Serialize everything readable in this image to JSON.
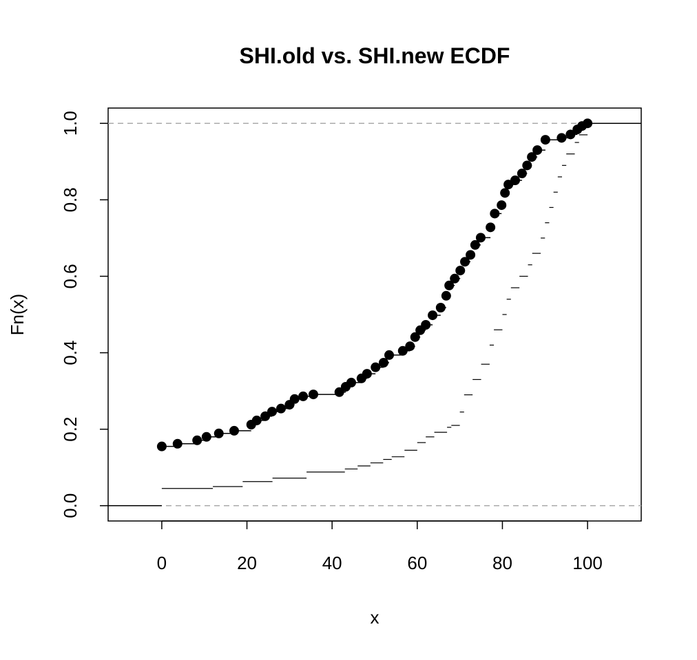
{
  "chart_data": {
    "type": "ecdf",
    "title": "SHI.old vs. SHI.new ECDF",
    "x_label": "x",
    "y_label": "Fn(x)",
    "xlim": [
      -12.6,
      112.6
    ],
    "ylim": [
      -0.04,
      1.04
    ],
    "xticks": [
      0,
      20,
      40,
      60,
      80,
      100
    ],
    "yticks": [
      {
        "value": 0,
        "label": "0.0"
      },
      {
        "value": 0.2,
        "label": "0.2"
      },
      {
        "value": 0.4,
        "label": "0.4"
      },
      {
        "value": 0.6,
        "label": "0.6"
      },
      {
        "value": 0.8,
        "label": "0.8"
      },
      {
        "value": 1,
        "label": "1.0"
      }
    ],
    "hlines": [
      0,
      1
    ],
    "series": [
      {
        "color": "#000000",
        "points": true,
        "x": [
          0,
          3.7,
          8.3,
          10.5,
          13.4,
          17,
          21,
          22.3,
          24.3,
          25.9,
          28,
          30,
          31.2,
          33.2,
          35.6,
          41.7,
          43.2,
          44.5,
          46.9,
          48.2,
          50.2,
          52.1,
          53.4,
          56.6,
          58.3,
          59.5,
          60.7,
          62,
          63.6,
          65.5,
          66.8,
          67.5,
          68.8,
          70.1,
          71.2,
          72.5,
          73.6,
          74.9,
          77.2,
          78.2,
          79.8,
          80.6,
          81.4,
          83,
          84.6,
          85.8,
          86.9,
          88.2,
          90.1,
          93.9,
          96,
          97.6,
          98.7,
          100
        ],
        "values": [
          0.155,
          0.162,
          0.171,
          0.18,
          0.189,
          0.196,
          0.212,
          0.223,
          0.234,
          0.246,
          0.254,
          0.264,
          0.279,
          0.286,
          0.291,
          0.297,
          0.311,
          0.322,
          0.333,
          0.345,
          0.362,
          0.374,
          0.394,
          0.405,
          0.417,
          0.441,
          0.459,
          0.473,
          0.498,
          0.518,
          0.549,
          0.576,
          0.594,
          0.615,
          0.638,
          0.656,
          0.682,
          0.701,
          0.728,
          0.764,
          0.786,
          0.818,
          0.84,
          0.851,
          0.869,
          0.89,
          0.912,
          0.93,
          0.957,
          0.962,
          0.971,
          0.984,
          0.993,
          1
        ]
      },
      {
        "color": "#000000",
        "points": false,
        "x": [
          0,
          12,
          19,
          26,
          34,
          43,
          46,
          49,
          52,
          54,
          57,
          60,
          62,
          64,
          67,
          68,
          70,
          71,
          73,
          75,
          77,
          78,
          80,
          81,
          82,
          84,
          86,
          87,
          89,
          90,
          91,
          92,
          93,
          94,
          95,
          97,
          98,
          100
        ],
        "values": [
          0.045,
          0.05,
          0.063,
          0.072,
          0.088,
          0.096,
          0.104,
          0.112,
          0.121,
          0.128,
          0.145,
          0.165,
          0.18,
          0.192,
          0.205,
          0.21,
          0.245,
          0.29,
          0.33,
          0.37,
          0.42,
          0.46,
          0.5,
          0.54,
          0.57,
          0.6,
          0.63,
          0.66,
          0.7,
          0.74,
          0.78,
          0.82,
          0.86,
          0.89,
          0.92,
          0.95,
          0.97,
          1
        ]
      }
    ]
  }
}
